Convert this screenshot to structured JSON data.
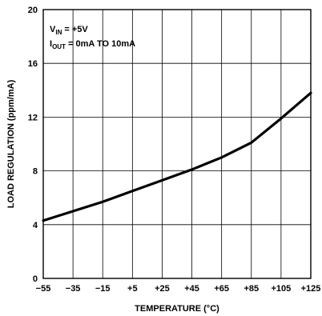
{
  "chart_data": {
    "type": "line",
    "title": "",
    "xlabel": "TEMPERATURE (°C)",
    "ylabel": "LOAD REGULATION (ppm/mA)",
    "xlim": [
      -55,
      125
    ],
    "ylim": [
      0,
      20
    ],
    "x_ticks": [
      "-55",
      "-35",
      "-15",
      "+5",
      "+25",
      "+45",
      "+65",
      "+85",
      "+105",
      "+125"
    ],
    "y_ticks": [
      "0",
      "4",
      "8",
      "12",
      "16",
      "20"
    ],
    "grid": true,
    "series": [
      {
        "x": [
          -55,
          -35,
          -15,
          5,
          25,
          45,
          65,
          85,
          105,
          125
        ],
        "y": [
          4.3,
          5.0,
          5.7,
          6.5,
          7.3,
          8.1,
          9.0,
          10.1,
          11.9,
          13.8
        ],
        "color": "#000000"
      }
    ],
    "annotations": [
      {
        "main": "V",
        "sub": "IN",
        "rest": " = +5V"
      },
      {
        "main": "I",
        "sub": "OUT",
        "rest": " = 0mA TO 10mA"
      }
    ]
  }
}
